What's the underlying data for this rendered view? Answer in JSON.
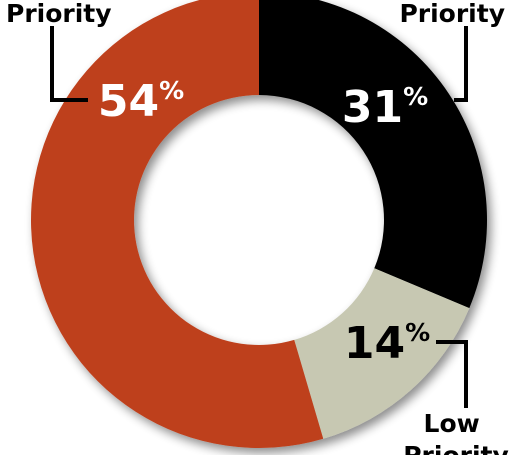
{
  "chart_data": {
    "type": "pie",
    "donut": true,
    "legend": "none",
    "slices": [
      {
        "label_lines": [
          "",
          "Priority"
        ],
        "value": 31,
        "value_text": "31",
        "unit": "%",
        "color": "#000000",
        "text_color": "#ffffff"
      },
      {
        "label_lines": [
          "Low",
          "Priority"
        ],
        "value": 14,
        "value_text": "14",
        "unit": "%",
        "color": "#c7c8b2",
        "text_color": "#000000"
      },
      {
        "label_lines": [
          "",
          "Priority"
        ],
        "value": 54,
        "value_text": "54",
        "unit": "%",
        "color": "#be3f1b",
        "text_color": "#ffffff"
      }
    ]
  }
}
